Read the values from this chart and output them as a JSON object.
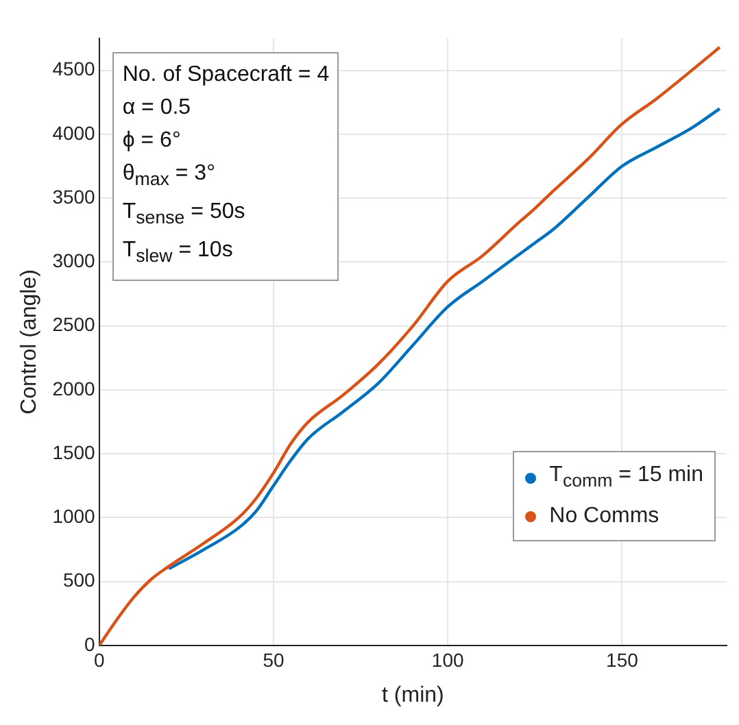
{
  "chart_data": {
    "type": "line",
    "xlabel": "t (min)",
    "ylabel": "Control (angle)",
    "x": [
      0,
      5,
      10,
      15,
      20,
      30,
      40,
      45,
      50,
      55,
      60,
      70,
      80,
      90,
      100,
      110,
      120,
      125,
      130,
      140,
      150,
      160,
      170,
      178
    ],
    "series": [
      {
        "name": "T$_{comm}$ = 15 min",
        "color": "#0072bd",
        "values": [
          null,
          null,
          null,
          null,
          600,
          750,
          920,
          1050,
          1250,
          1450,
          1620,
          1830,
          2050,
          2350,
          2650,
          2850,
          3050,
          3150,
          3250,
          3500,
          3750,
          3900,
          4050,
          4200
        ]
      },
      {
        "name": "No Comms",
        "color": "#d95319",
        "values": [
          0,
          200,
          380,
          520,
          620,
          800,
          1000,
          1150,
          1350,
          1580,
          1750,
          1960,
          2200,
          2500,
          2850,
          3050,
          3300,
          3420,
          3550,
          3800,
          4080,
          4280,
          4500,
          4680
        ]
      }
    ],
    "xlim": [
      0,
      180
    ],
    "xticks": [
      0,
      50,
      100,
      150
    ],
    "ylim": [
      0,
      4750
    ],
    "yticks": [
      0,
      500,
      1000,
      1500,
      2000,
      2500,
      3000,
      3500,
      4000,
      4500
    ],
    "grid": true,
    "legend": "bottom right",
    "line_style": "solid",
    "annotations": [
      "No. of Spacecraft = 4",
      "α = 0.5",
      "ϕ = 6°",
      "θ$_{max}$ = 3°",
      "T$_{sense}$ = 50s",
      "T$_{slew}$ = 10s"
    ]
  }
}
